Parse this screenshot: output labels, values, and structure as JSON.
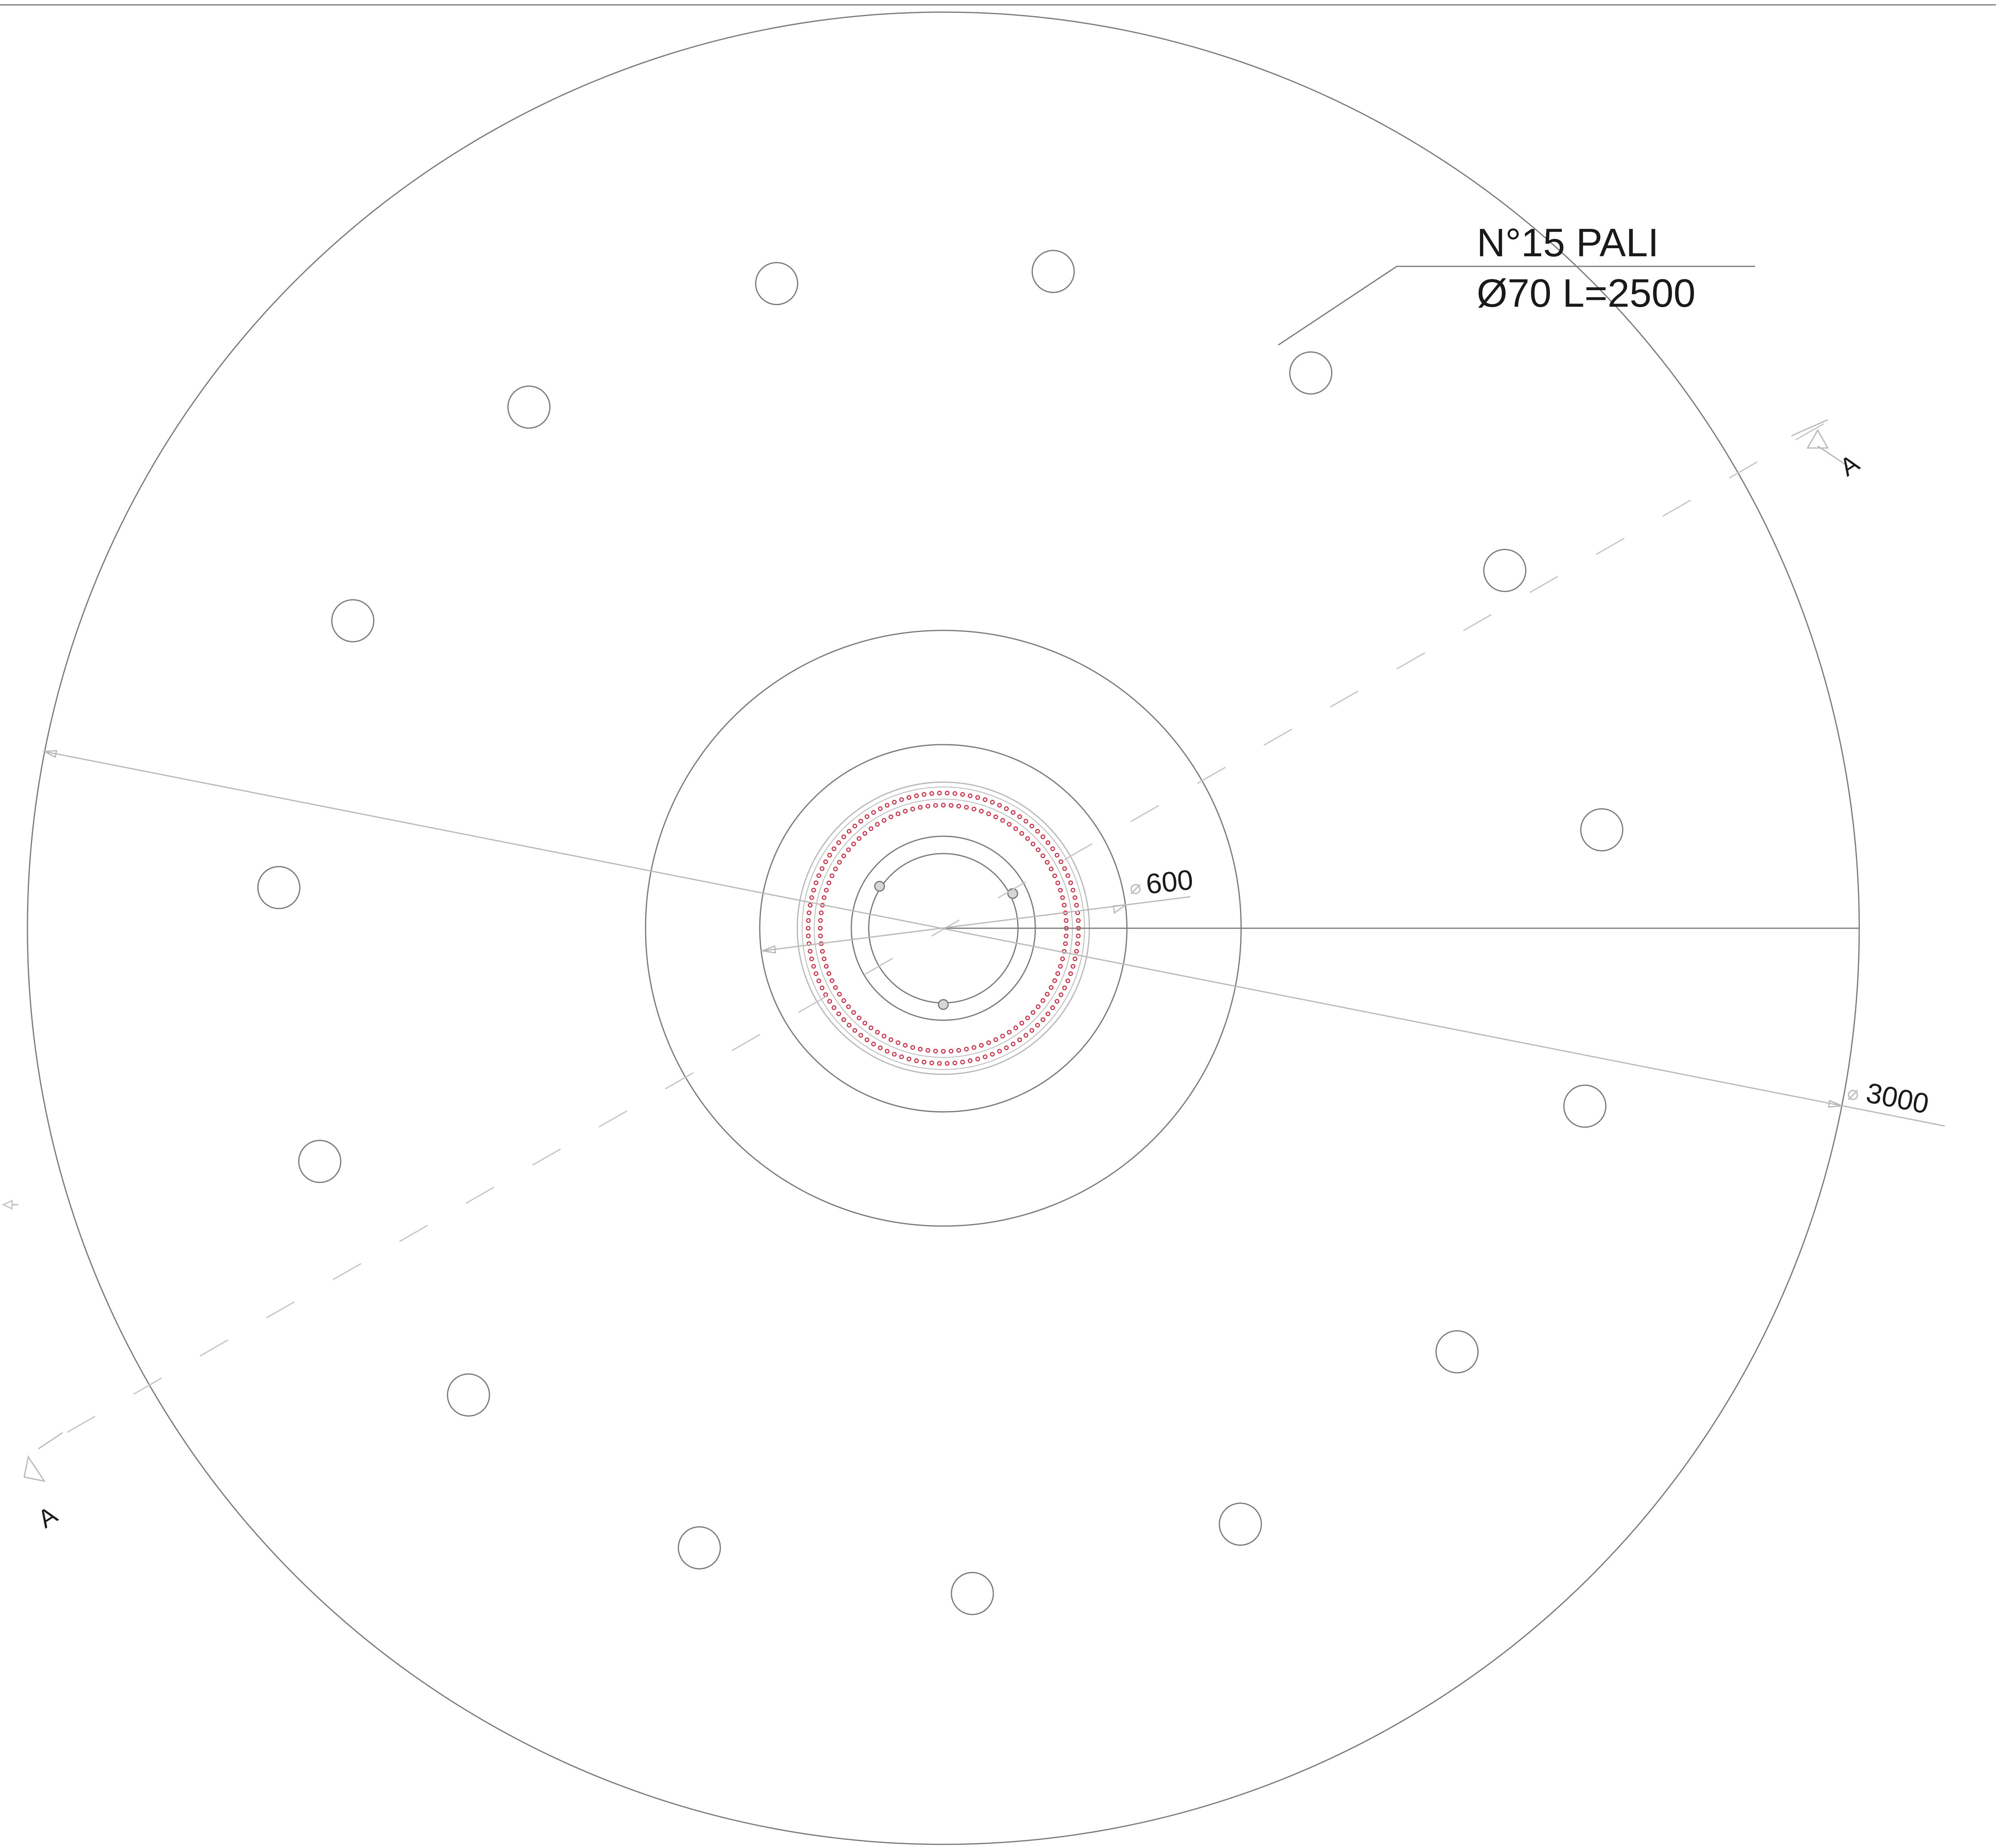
{
  "drawing": {
    "note_line1": "N°15 PALI",
    "note_line2": "Ø70 L=2500",
    "dim_small_symbol": "⌀",
    "dim_small_value": "600",
    "dim_large_symbol": "⌀",
    "dim_large_value": "3000",
    "section_label_top": "A",
    "section_label_bottom": "A",
    "colors": {
      "line": "#7a7a7a",
      "light_line": "#b8b8b8",
      "rebar": "#d0263e"
    },
    "pile_count": 15
  }
}
